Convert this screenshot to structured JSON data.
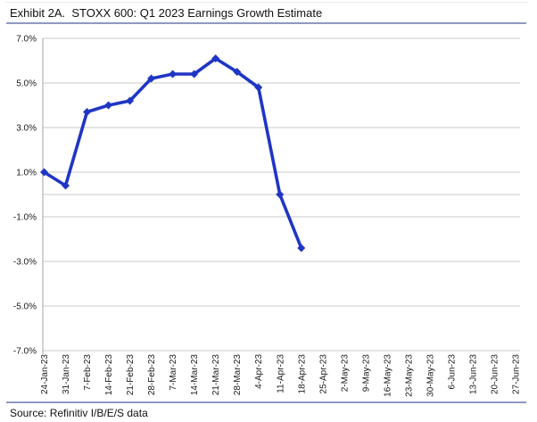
{
  "header": {
    "title": "Exhibit 2A.  STOXX 600: Q1 2023 Earnings Growth Estimate"
  },
  "footer": {
    "source": "Source: Refinitiv I/B/E/S data"
  },
  "colors": {
    "line": "#1f36c4",
    "grid": "#c9c9c9",
    "axis": "#a3a3a3",
    "rule": "#8e99c2",
    "tick_text": "#1a1a1a"
  },
  "chart_data": {
    "type": "line",
    "title": "Exhibit 2A.  STOXX 600: Q1 2023 Earnings Growth Estimate",
    "categories": [
      "24-Jan-23",
      "31-Jan-23",
      "7-Feb-23",
      "14-Feb-23",
      "21-Feb-23",
      "28-Feb-23",
      "7-Mar-23",
      "14-Mar-23",
      "21-Mar-23",
      "28-Mar-23",
      "4-Apr-23",
      "11-Apr-23",
      "18-Apr-23",
      "25-Apr-23",
      "2-May-23",
      "9-May-23",
      "16-May-23",
      "23-May-23",
      "30-May-23",
      "6-Jun-23",
      "13-Jun-23",
      "20-Jun-23",
      "27-Jun-23"
    ],
    "values": [
      1.0,
      0.4,
      3.7,
      4.0,
      4.2,
      5.2,
      5.4,
      5.4,
      6.1,
      5.5,
      4.8,
      0.0,
      -2.4
    ],
    "ylim": [
      -7,
      7
    ],
    "ytick_values": [
      7,
      5,
      3,
      1,
      -1,
      -3,
      -5,
      -7
    ],
    "ytick_labels": [
      "7.0%",
      "5.0%",
      "3.0%",
      "1.0%",
      "-1.0%",
      "-3.0%",
      "-5.0%",
      "-7.0%"
    ],
    "grid": true,
    "zero_axis_line": true,
    "legend": "none",
    "marker": "diamond",
    "xlabel": "",
    "ylabel": "",
    "source": "Source: Refinitiv I/B/E/S data"
  }
}
